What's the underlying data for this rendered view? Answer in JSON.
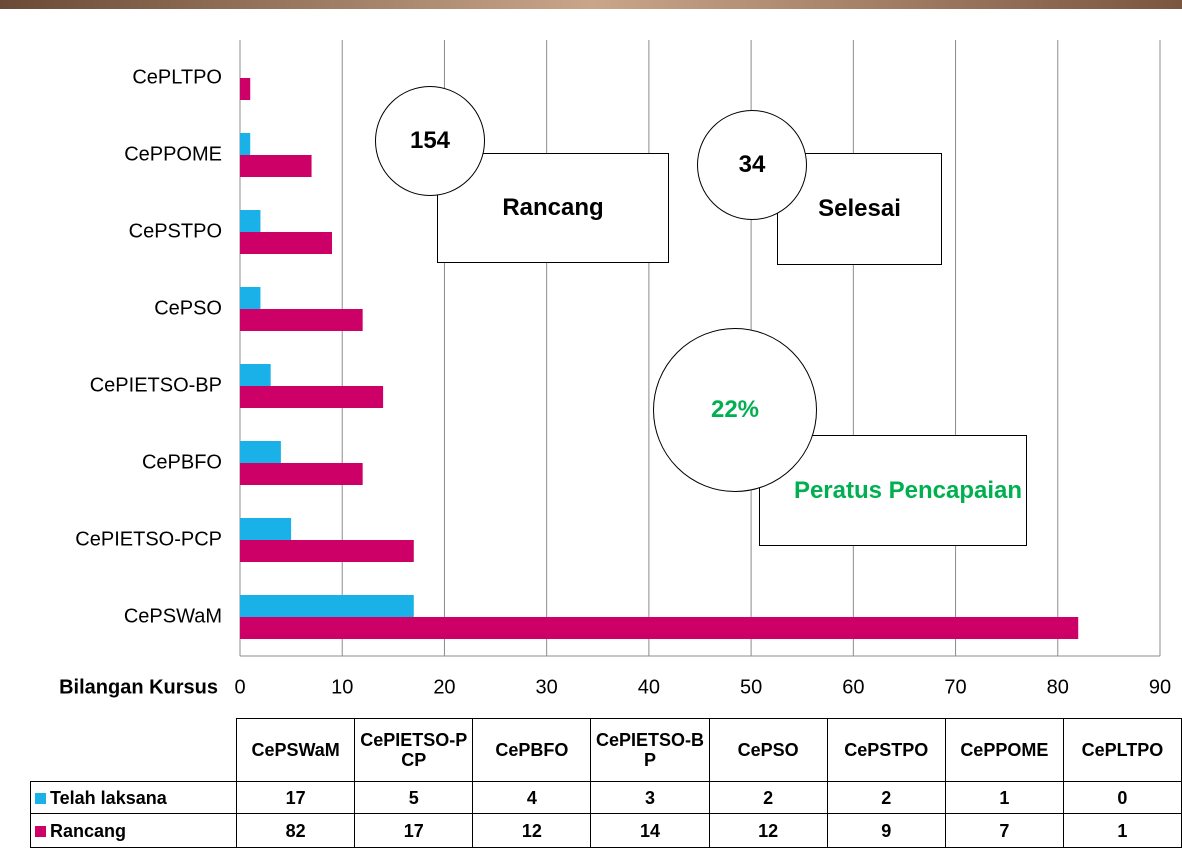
{
  "chart_data": {
    "type": "bar",
    "orientation": "horizontal",
    "categories": [
      "CePSWaM",
      "CePIETSO-PCP",
      "CePBFO",
      "CePIETSO-BP",
      "CePSO",
      "CePSTPO",
      "CePPOME",
      "CePLTPO"
    ],
    "series": [
      {
        "name": "Telah laksana",
        "color": "#1ab0e8",
        "values": [
          17,
          5,
          4,
          3,
          2,
          2,
          1,
          0
        ]
      },
      {
        "name": "Rancang",
        "color": "#cc0066",
        "values": [
          82,
          17,
          12,
          14,
          12,
          9,
          7,
          1
        ]
      }
    ],
    "x_label": "Bilangan Kursus",
    "xlim": [
      0,
      90
    ],
    "xticks": [
      0,
      10,
      20,
      30,
      40,
      50,
      60,
      70,
      80,
      90
    ],
    "grid": true,
    "annotations": [
      "154",
      "Rancang",
      "34",
      "Selesai",
      "22%",
      "Peratus Pencapaian"
    ]
  }
}
